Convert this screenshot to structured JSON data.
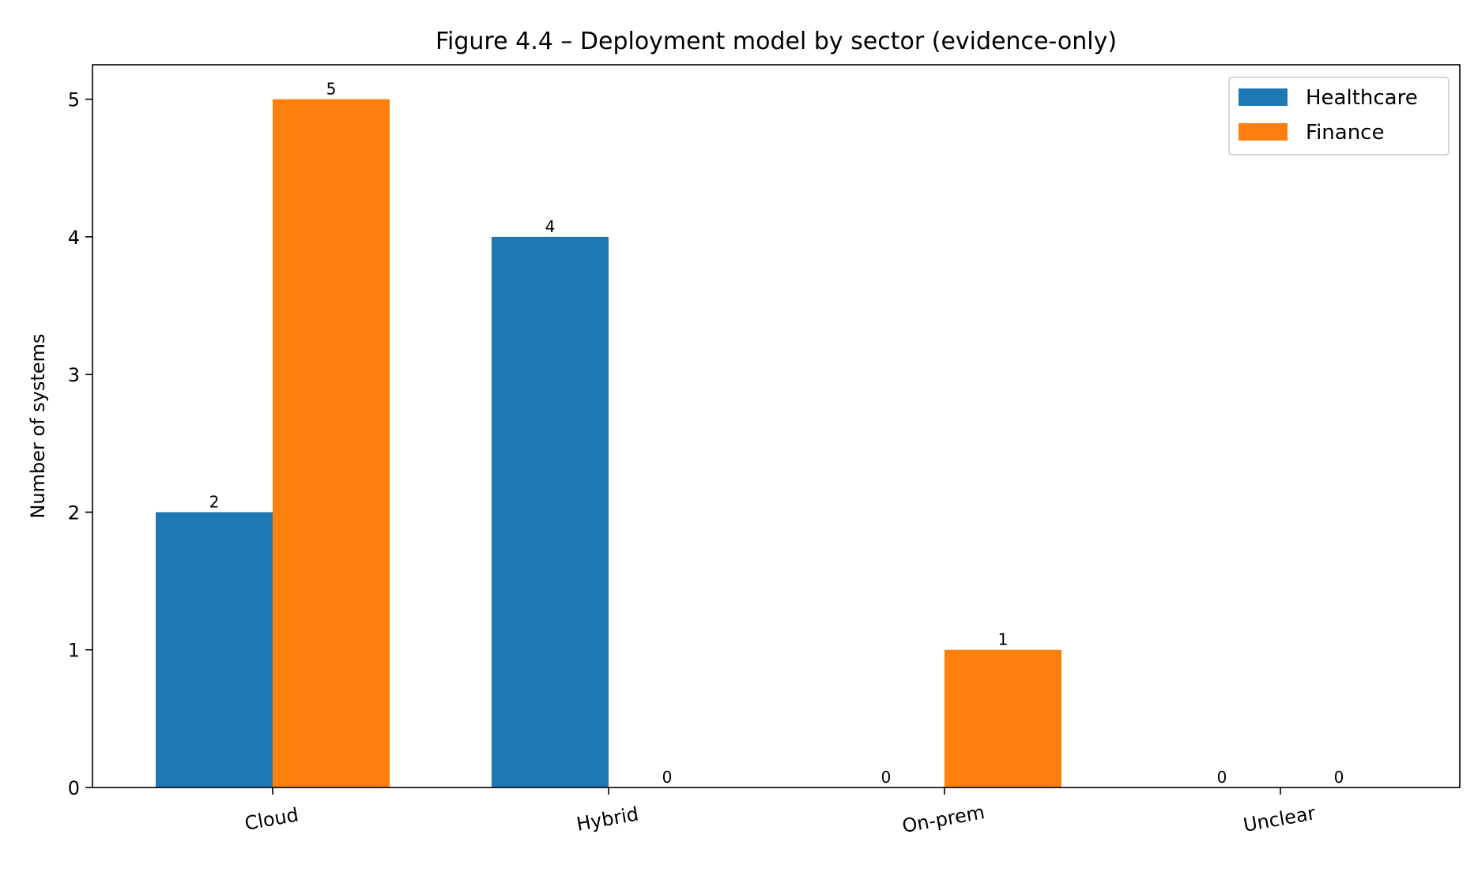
{
  "chart_data": {
    "type": "bar",
    "title": "Figure 4.4 – Deployment model by sector (evidence-only)",
    "xlabel": "",
    "ylabel": "Number of systems",
    "categories": [
      "Cloud",
      "Hybrid",
      "On-prem",
      "Unclear"
    ],
    "series": [
      {
        "name": "Healthcare",
        "values": [
          2,
          4,
          0,
          0
        ],
        "color": "#1f77b4"
      },
      {
        "name": "Finance",
        "values": [
          5,
          0,
          1,
          0
        ],
        "color": "#ff7f0e"
      }
    ],
    "ylim": [
      0,
      5.25
    ],
    "yticks": [
      0,
      1,
      2,
      3,
      4,
      5
    ],
    "tick_label_rotation_deg": -10,
    "grid": false,
    "legend_position": "top-right",
    "data_labels": true
  }
}
